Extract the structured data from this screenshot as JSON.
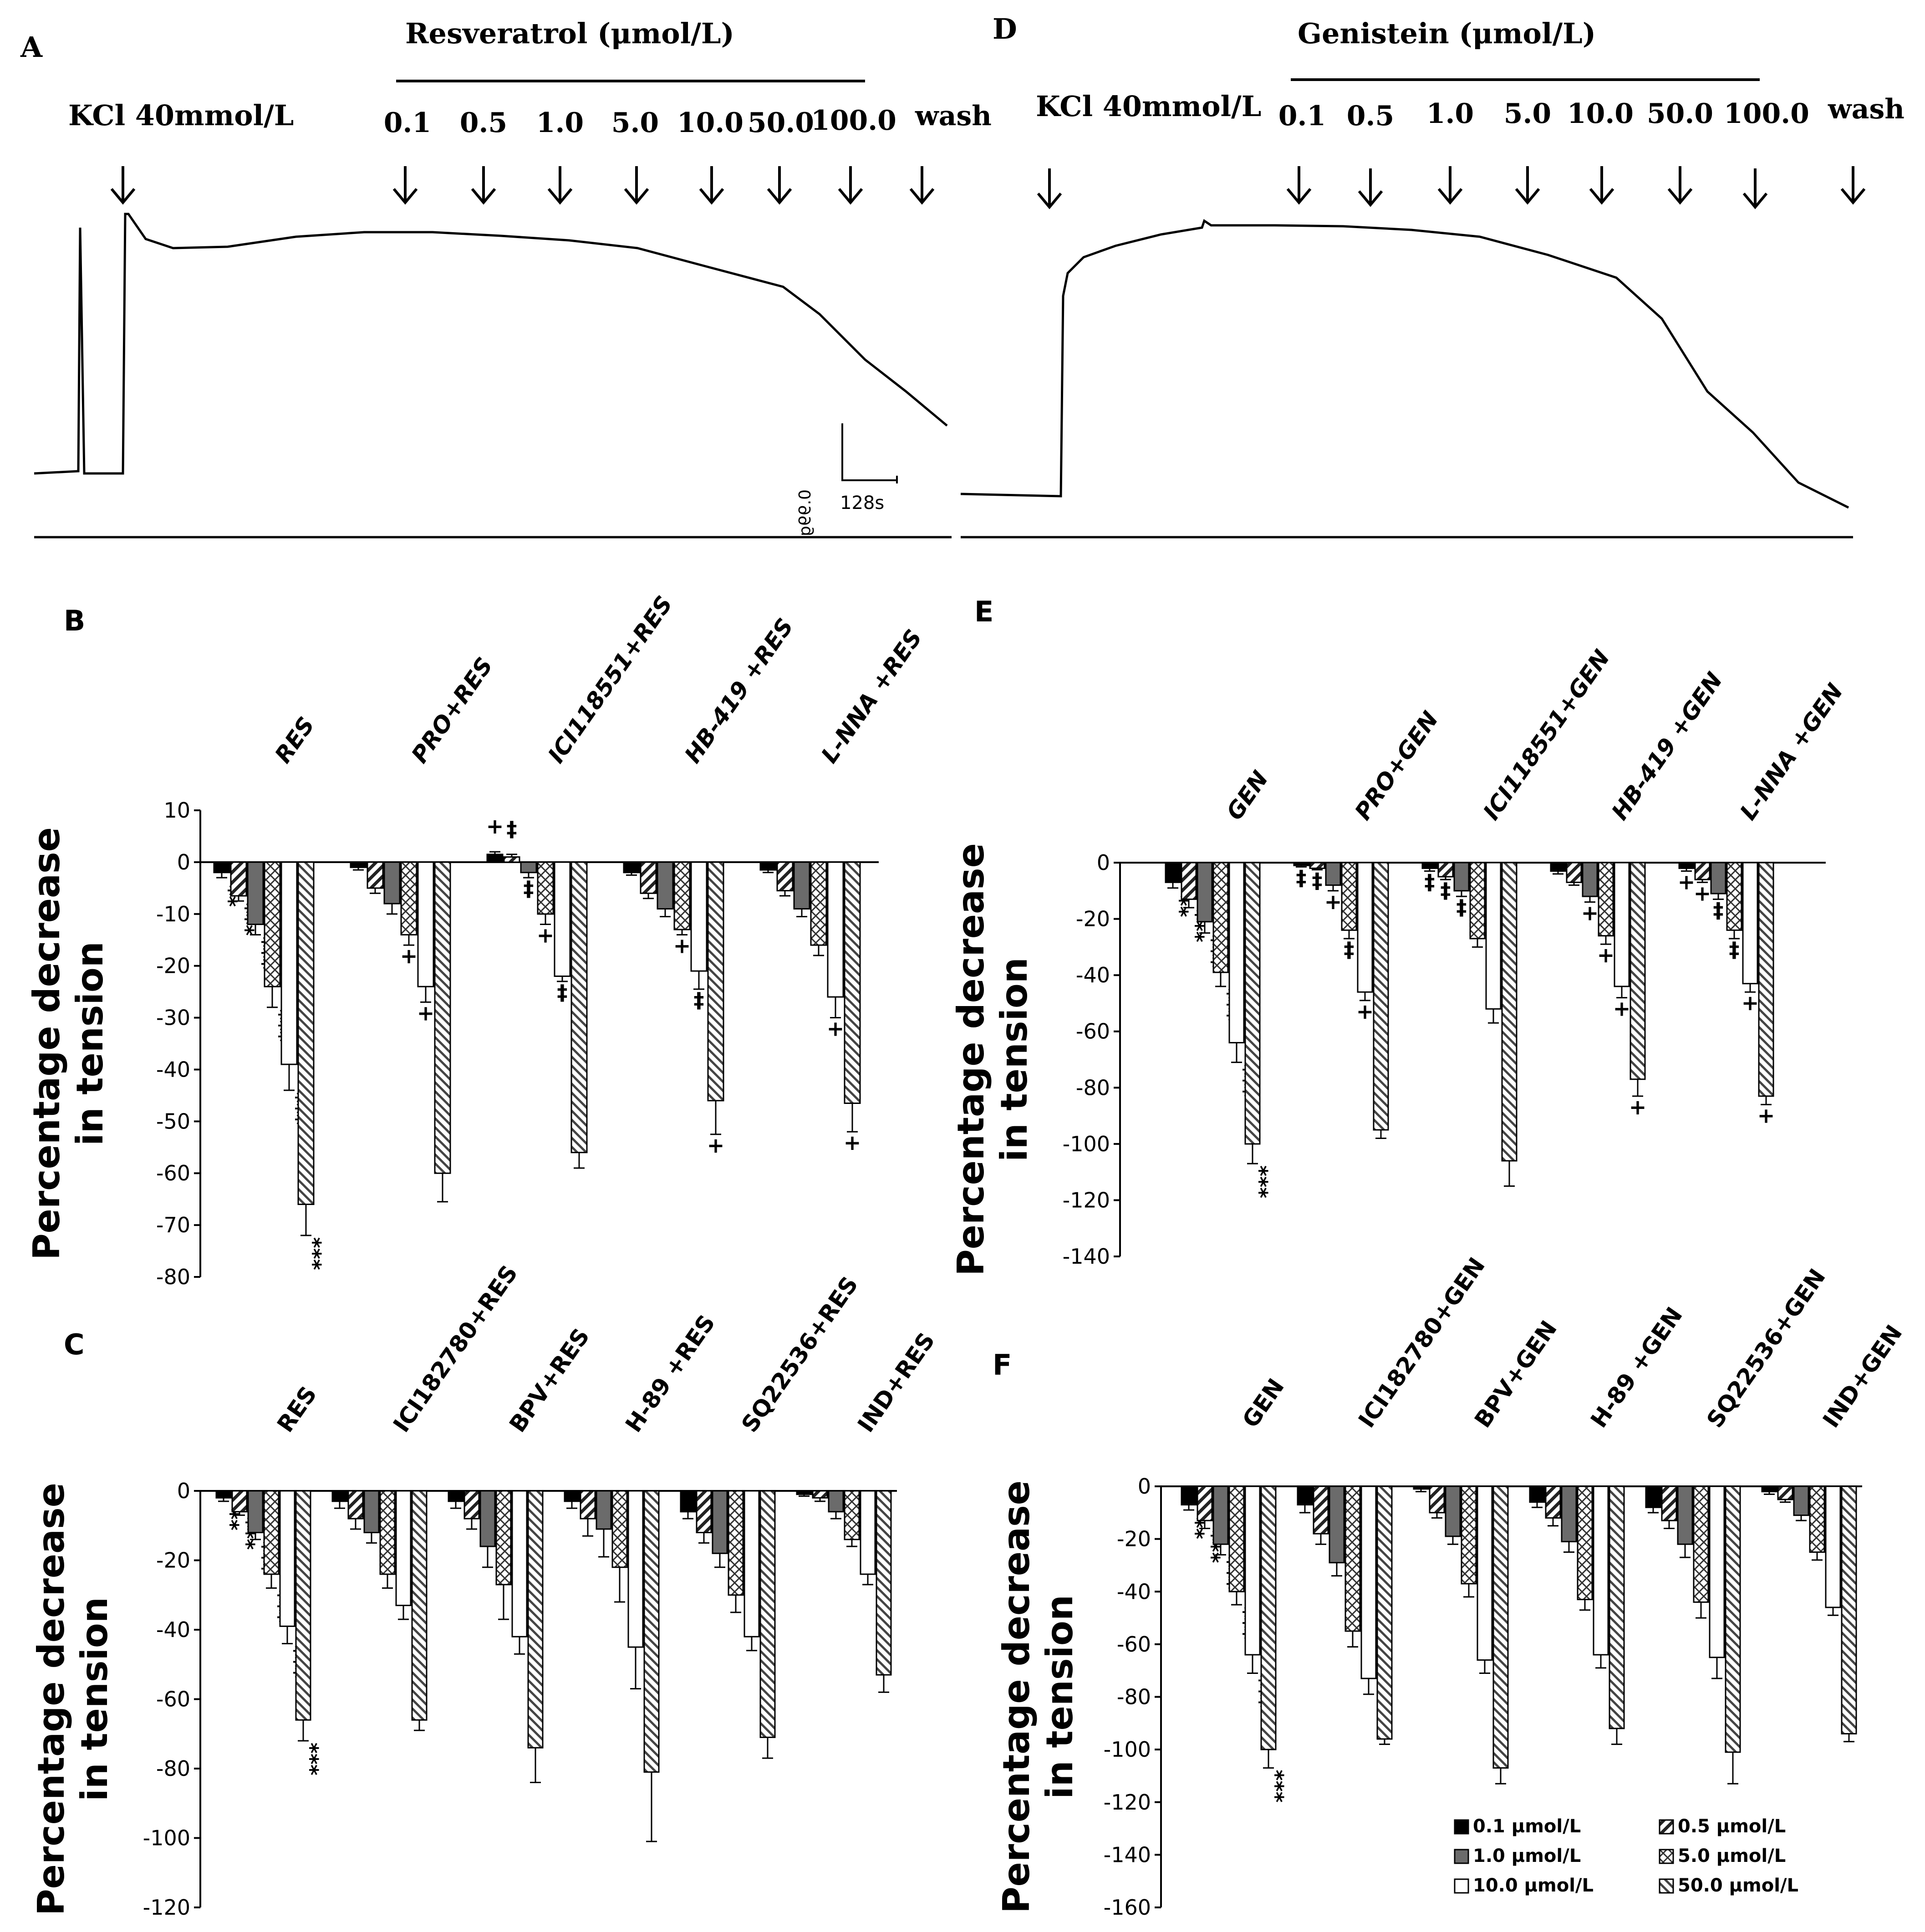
{
  "figure": {
    "panel_labels": [
      "A",
      "B",
      "C",
      "D",
      "E",
      "F"
    ]
  },
  "trace_A": {
    "label": "A",
    "drug_label": "Resveratrol (μmol/L)",
    "kcl_label": "KCl 40mmol/L",
    "doses": [
      "0.1",
      "0.5",
      "1.0",
      "5.0",
      "10.0",
      "50.0",
      "100.0"
    ],
    "wash_label": "wash",
    "scale_y_label": "0.99g",
    "scale_x_label": "128s"
  },
  "trace_D": {
    "label": "D",
    "drug_label": "Genistein (μmol/L)",
    "kcl_label": "KCl 40mmol/L",
    "doses": [
      "0.1",
      "0.5",
      "1.0",
      "5.0",
      "10.0",
      "50.0",
      "100.0"
    ],
    "wash_label": "wash"
  },
  "legend": {
    "entries": [
      {
        "label": "0.1 μmol/L",
        "pattern": "solid-black"
      },
      {
        "label": "0.5 μmol/L",
        "pattern": "hatch-diagonal"
      },
      {
        "label": "1.0 μmol/L",
        "pattern": "solid-gray"
      },
      {
        "label": "5.0 μmol/L",
        "pattern": "hatch-cross"
      },
      {
        "label": "10.0 μmol/L",
        "pattern": "white"
      },
      {
        "label": "50.0 μmol/L",
        "pattern": "hatch-diagonal-dense"
      }
    ]
  },
  "chart_data": [
    {
      "id": "B",
      "type": "bar",
      "title": "B",
      "ylabel": "Percentage decrease in tension",
      "ylim": [
        -80,
        10
      ],
      "yticks": [
        10,
        0,
        -10,
        -20,
        -30,
        -40,
        -50,
        -60,
        -70,
        -80
      ],
      "categories": [
        "RES",
        "PRO+RES",
        "ICI118551+RES",
        "HB-419 +RES",
        "L-NNA +RES"
      ],
      "series_names": [
        "0.1 μmol/L",
        "0.5 μmol/L",
        "1.0 μmol/L",
        "5.0 μmol/L",
        "10.0 μmol/L",
        "50.0 μmol/L"
      ],
      "values": [
        [
          -2,
          -6.5,
          -12,
          -24,
          -39,
          -66
        ],
        [
          -1,
          -5,
          -8,
          -14,
          -24,
          -60
        ],
        [
          1.5,
          1,
          -2,
          -10,
          -22,
          -56
        ],
        [
          -2,
          -6,
          -9,
          -13,
          -21,
          -46
        ],
        [
          -1.5,
          -5.5,
          -9,
          -16,
          -26,
          -46.5
        ]
      ],
      "errors": [
        [
          1,
          1,
          2,
          4,
          5,
          6
        ],
        [
          0.5,
          1,
          2,
          2,
          3,
          5.5
        ],
        [
          0.5,
          0.5,
          1,
          2,
          1,
          3
        ],
        [
          0.5,
          1,
          1.5,
          1,
          3.5,
          6.5
        ],
        [
          0.5,
          1,
          1.5,
          2,
          4,
          5.5
        ]
      ],
      "annotations": [
        [
          "**",
          "***",
          "***",
          "***",
          "***",
          "***"
        ],
        [
          "",
          "",
          "",
          "+",
          "+",
          ""
        ],
        [
          "+",
          "‡",
          "‡",
          "+",
          "‡",
          ""
        ],
        [
          "",
          "",
          "",
          "+",
          "‡",
          "+"
        ],
        [
          "",
          "",
          "",
          "",
          "+",
          "+"
        ]
      ]
    },
    {
      "id": "C",
      "type": "bar",
      "title": "C",
      "ylabel": "Percentage decrease in tension",
      "ylim": [
        -120,
        0
      ],
      "yticks": [
        0,
        -20,
        -40,
        -60,
        -80,
        -100,
        -120
      ],
      "categories": [
        "RES",
        "ICI182780+RES",
        "BPV+RES",
        "H-89 +RES",
        "SQ22536+RES",
        "IND+RES"
      ],
      "series_names": [
        "0.1 μmol/L",
        "0.5 μmol/L",
        "1.0 μmol/L",
        "5.0 μmol/L",
        "10.0 μmol/L",
        "50.0 μmol/L"
      ],
      "values": [
        [
          -2,
          -6,
          -12,
          -24,
          -39,
          -66
        ],
        [
          -3,
          -8,
          -12,
          -24,
          -33,
          -66
        ],
        [
          -3,
          -8,
          -16,
          -27,
          -42,
          -74
        ],
        [
          -3,
          -8,
          -11,
          -22,
          -45,
          -81
        ],
        [
          -6,
          -12,
          -18,
          -30,
          -42,
          -71
        ],
        [
          -1,
          -2,
          -6,
          -14,
          -24,
          -53
        ]
      ],
      "errors": [
        [
          1,
          1,
          2,
          4,
          5,
          6
        ],
        [
          2,
          3,
          3,
          4,
          4,
          3
        ],
        [
          2,
          3,
          6,
          10,
          5,
          10
        ],
        [
          2,
          5,
          8,
          10,
          12,
          20
        ],
        [
          2,
          3,
          4,
          5,
          4,
          6
        ],
        [
          0.5,
          1,
          2,
          2,
          3,
          5
        ]
      ],
      "annotations": [
        [
          "**",
          "***",
          "***",
          "***",
          "***",
          "***"
        ],
        [
          "",
          "",
          "",
          "",
          "",
          ""
        ],
        [
          "",
          "",
          "",
          "",
          "",
          ""
        ],
        [
          "",
          "",
          "",
          "",
          "",
          ""
        ],
        [
          "",
          "",
          "",
          "",
          "",
          ""
        ],
        [
          "",
          "",
          "",
          "",
          "",
          ""
        ]
      ]
    },
    {
      "id": "E",
      "type": "bar",
      "title": "E",
      "ylabel": "Percentage decrease in tension",
      "ylim": [
        -140,
        0
      ],
      "yticks": [
        0,
        -20,
        -40,
        -60,
        -80,
        -100,
        -120,
        -140
      ],
      "categories": [
        "GEN",
        "PRO+GEN",
        "ICI118551+GEN",
        "HB-419 +GEN",
        "L-NNA +GEN"
      ],
      "series_names": [
        "0.1 μmol/L",
        "0.5 μmol/L",
        "1.0 μmol/L",
        "5.0 μmol/L",
        "10.0 μmol/L",
        "50.0 μmol/L"
      ],
      "values": [
        [
          -7,
          -13,
          -21,
          -39,
          -64,
          -100
        ],
        [
          -1,
          -2,
          -8,
          -24,
          -46,
          -95
        ],
        [
          -2,
          -5,
          -10,
          -27,
          -52,
          -106
        ],
        [
          -3,
          -7,
          -12,
          -26,
          -44,
          -77
        ],
        [
          -2,
          -6,
          -11,
          -24,
          -43,
          -83
        ]
      ],
      "errors": [
        [
          2,
          3,
          4,
          5,
          7,
          7
        ],
        [
          0.5,
          0.5,
          2,
          3,
          3,
          3
        ],
        [
          1,
          1,
          2,
          3,
          5,
          9
        ],
        [
          1,
          1,
          2,
          3,
          4,
          6
        ],
        [
          1,
          1,
          2,
          3,
          3,
          3
        ]
      ],
      "annotations": [
        [
          "**",
          "***",
          "***",
          "***",
          "***",
          "***"
        ],
        [
          "‡",
          "‡",
          "+",
          "‡",
          "+",
          ""
        ],
        [
          "‡",
          "‡",
          "‡",
          "",
          "",
          ""
        ],
        [
          "",
          "",
          "+",
          "+",
          "+",
          "+"
        ],
        [
          "+",
          "+",
          "‡",
          "‡",
          "+",
          "+"
        ]
      ]
    },
    {
      "id": "F",
      "type": "bar",
      "title": "F",
      "ylabel": "Percentage decrease in tension",
      "ylim": [
        -160,
        0
      ],
      "yticks": [
        0,
        -20,
        -40,
        -60,
        -80,
        -100,
        -120,
        -140,
        -160
      ],
      "categories": [
        "GEN",
        "ICI182780+GEN",
        "BPV+GEN",
        "H-89 +GEN",
        "SQ22536+GEN",
        "IND+GEN"
      ],
      "series_names": [
        "0.1 μmol/L",
        "0.5 μmol/L",
        "1.0 μmol/L",
        "5.0 μmol/L",
        "10.0 μmol/L",
        "50.0 μmol/L"
      ],
      "values": [
        [
          -7,
          -13,
          -22,
          -40,
          -64,
          -100
        ],
        [
          -7,
          -18,
          -29,
          -55,
          -73,
          -96
        ],
        [
          -1,
          -10,
          -19,
          -37,
          -66,
          -107
        ],
        [
          -6,
          -12,
          -21,
          -43,
          -64,
          -92
        ],
        [
          -8,
          -13,
          -22,
          -44,
          -65,
          -101
        ],
        [
          -2,
          -5,
          -11,
          -25,
          -46,
          -94
        ]
      ],
      "errors": [
        [
          2,
          3,
          4,
          5,
          7,
          7
        ],
        [
          3,
          4,
          5,
          6,
          6,
          2
        ],
        [
          1,
          2,
          3,
          5,
          5,
          6
        ],
        [
          2,
          3,
          4,
          4,
          5,
          6
        ],
        [
          2,
          3,
          5,
          6,
          8,
          12
        ],
        [
          1,
          1,
          2,
          3,
          3,
          3
        ]
      ],
      "annotations": [
        [
          "**",
          "***",
          "***",
          "***",
          "***",
          "***"
        ],
        [
          "",
          "",
          "",
          "",
          "",
          ""
        ],
        [
          "",
          "",
          "",
          "",
          "",
          ""
        ],
        [
          "",
          "",
          "",
          "",
          "",
          ""
        ],
        [
          "",
          "",
          "",
          "",
          "",
          ""
        ],
        [
          "",
          "",
          "",
          "",
          "",
          ""
        ]
      ]
    }
  ]
}
